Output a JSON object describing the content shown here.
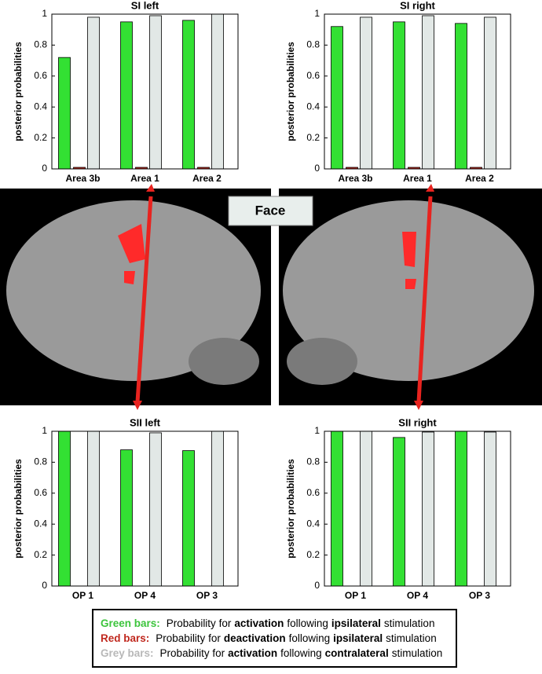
{
  "chart_data": [
    {
      "type": "bar",
      "title": "SI left",
      "y_label": "posterior probabilities",
      "categories": [
        "Area 3b",
        "Area 1",
        "Area 2"
      ],
      "series": [
        {
          "color": "#33e033",
          "values": [
            0.72,
            0.95,
            0.96
          ]
        },
        {
          "color": "#c0281e",
          "values": [
            0.01,
            0.01,
            0.01
          ]
        },
        {
          "color": "#e2e8e6",
          "values": [
            0.98,
            0.99,
            1.0
          ]
        }
      ],
      "ylim": [
        0,
        1
      ],
      "yticks": [
        0,
        0.2,
        0.4,
        0.6,
        0.8,
        1
      ]
    },
    {
      "type": "bar",
      "title": "SI right",
      "y_label": "posterior probabilities",
      "categories": [
        "Area 3b",
        "Area 1",
        "Area 2"
      ],
      "series": [
        {
          "color": "#33e033",
          "values": [
            0.92,
            0.95,
            0.94
          ]
        },
        {
          "color": "#c0281e",
          "values": [
            0.01,
            0.01,
            0.01
          ]
        },
        {
          "color": "#e2e8e6",
          "values": [
            0.98,
            0.99,
            0.98
          ]
        }
      ],
      "ylim": [
        0,
        1
      ],
      "yticks": [
        0,
        0.2,
        0.4,
        0.6,
        0.8,
        1
      ]
    },
    {
      "type": "bar",
      "title": "SII left",
      "y_label": "posterior probabilities",
      "categories": [
        "OP 1",
        "OP 4",
        "OP 3"
      ],
      "series": [
        {
          "color": "#33e033",
          "values": [
            1.0,
            0.88,
            0.875
          ]
        },
        {
          "color": "#c0281e",
          "values": [
            0,
            0,
            0
          ]
        },
        {
          "color": "#e2e8e6",
          "values": [
            1.0,
            0.99,
            1.0
          ]
        }
      ],
      "ylim": [
        0,
        1
      ],
      "yticks": [
        0,
        0.2,
        0.4,
        0.6,
        0.8,
        1
      ]
    },
    {
      "type": "bar",
      "title": "SII right",
      "y_label": "posterior probabilities",
      "categories": [
        "OP 1",
        "OP 4",
        "OP 3"
      ],
      "series": [
        {
          "color": "#33e033",
          "values": [
            1.0,
            0.96,
            1.0
          ]
        },
        {
          "color": "#c0281e",
          "values": [
            0,
            0,
            0
          ]
        },
        {
          "color": "#e2e8e6",
          "values": [
            1.0,
            0.995,
            0.995
          ]
        }
      ],
      "ylim": [
        0,
        1
      ],
      "yticks": [
        0,
        0.2,
        0.4,
        0.6,
        0.8,
        1
      ]
    }
  ],
  "center_label": "Face",
  "legend": [
    {
      "key": "Green bars:",
      "key_color": "#3cc43c",
      "parts": [
        "Probability for",
        "activation",
        "following",
        "ipsilateral",
        "stimulation"
      ]
    },
    {
      "key": "Red bars:",
      "key_color": "#c0281e",
      "parts": [
        "Probability for",
        "deactivation",
        "following",
        "ipsilateral",
        "stimulation"
      ]
    },
    {
      "key": "Grey bars:",
      "key_color": "#b8b8b8",
      "parts": [
        "Probability for",
        "activation",
        "following",
        "contralateral",
        "stimulation"
      ]
    }
  ]
}
